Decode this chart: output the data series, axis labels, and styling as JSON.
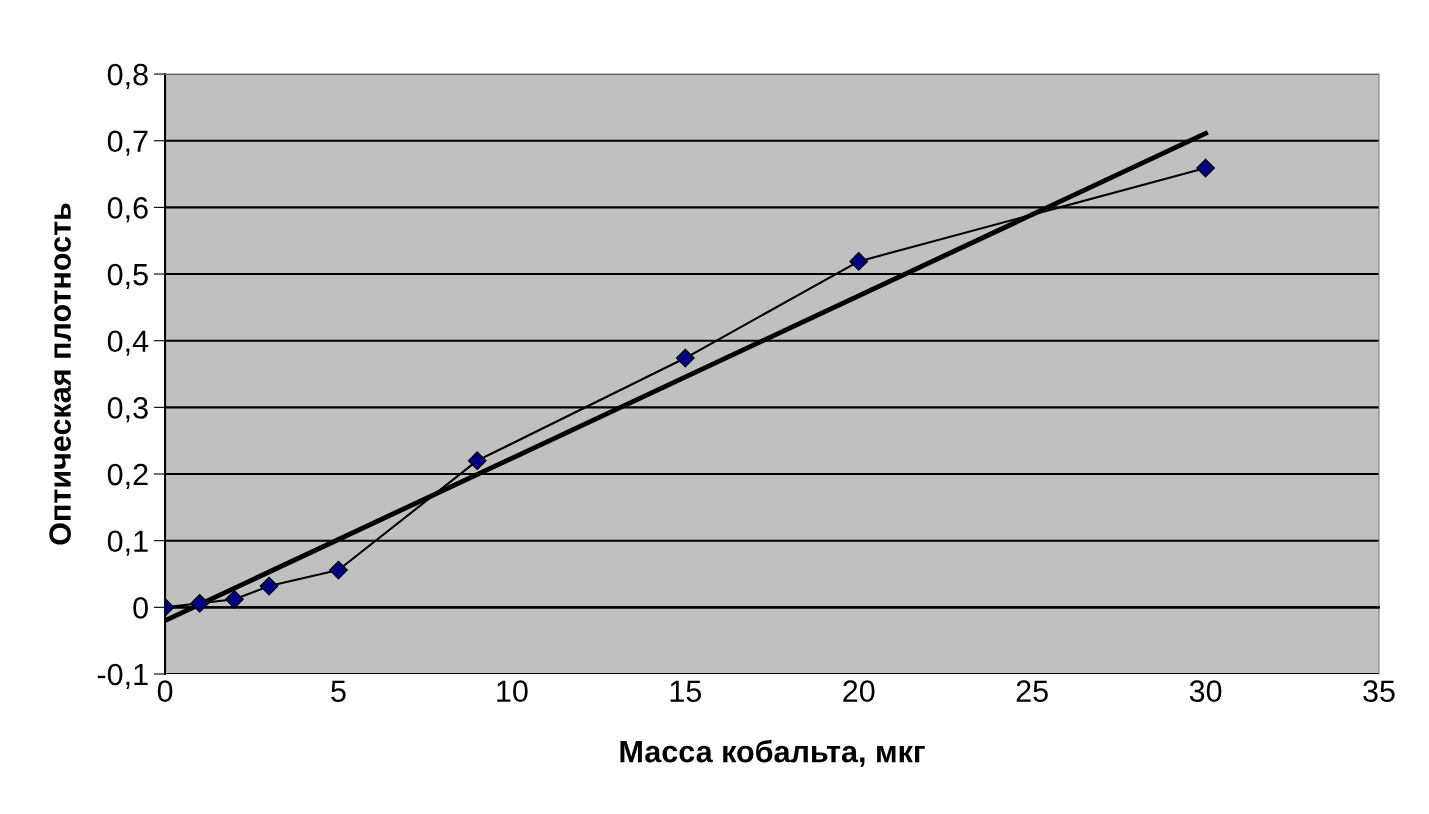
{
  "chart_data": {
    "type": "line",
    "xlabel": "Масса кобальта, мкг",
    "ylabel": "Оптическая плотность",
    "series": [
      {
        "color": "#000080",
        "marker": "diamond",
        "x": [
          0,
          1,
          2,
          3,
          5,
          9,
          15,
          20,
          30
        ],
        "values": [
          0,
          0.006,
          0.012,
          0.032,
          0.056,
          0.22,
          0.374,
          0.519,
          0.659
        ]
      },
      {
        "color": "#000000",
        "marker": "none",
        "x": [
          0,
          30
        ],
        "values": [
          -0.02,
          0.711
        ]
      }
    ],
    "xlim": [
      0,
      35
    ],
    "xticks": [
      0,
      5,
      10,
      15,
      20,
      25,
      30,
      35
    ],
    "ylim": [
      -0.1,
      0.8
    ],
    "yticks": [
      {
        "value": -0.1,
        "label": "-0,1"
      },
      {
        "value": 0,
        "label": "0"
      },
      {
        "value": 0.1,
        "label": "0,1"
      },
      {
        "value": 0.2,
        "label": "0,2"
      },
      {
        "value": 0.3,
        "label": "0,3"
      },
      {
        "value": 0.4,
        "label": "0,4"
      },
      {
        "value": 0.5,
        "label": "0,5"
      },
      {
        "value": 0.6,
        "label": "0,6"
      },
      {
        "value": 0.7,
        "label": "0,7"
      },
      {
        "value": 0.8,
        "label": "0,8"
      }
    ],
    "grid": "y",
    "legend": false
  }
}
